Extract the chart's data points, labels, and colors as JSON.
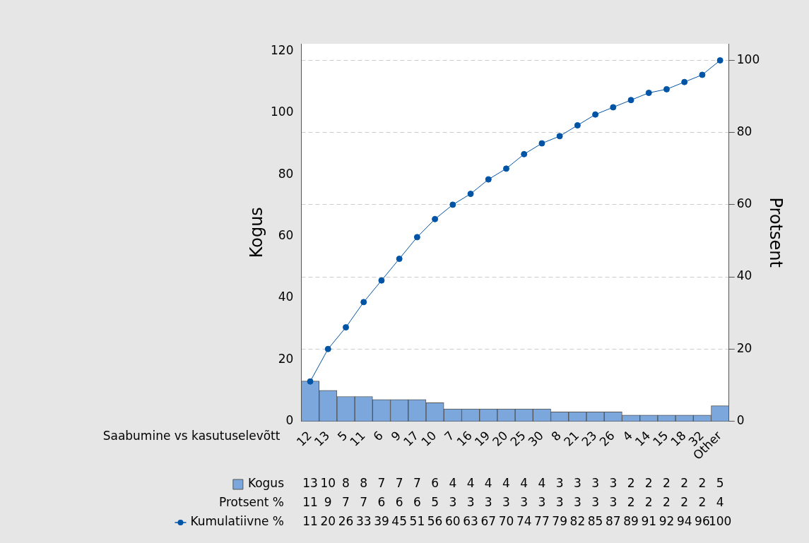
{
  "chart_data": {
    "type": "bar",
    "xlabel": "Saabumine vs kasutuselevõtt",
    "ylabel": "Kogus",
    "y2label": "Protsent",
    "categories": [
      "12",
      "13",
      "5",
      "11",
      "6",
      "9",
      "17",
      "10",
      "7",
      "16",
      "19",
      "20",
      "25",
      "30",
      "8",
      "21",
      "23",
      "26",
      "4",
      "14",
      "15",
      "18",
      "32",
      "Other"
    ],
    "series": [
      {
        "name": "Kogus",
        "color": "#7ba7dc",
        "values": [
          13,
          10,
          8,
          8,
          7,
          7,
          7,
          6,
          4,
          4,
          4,
          4,
          4,
          4,
          3,
          3,
          3,
          3,
          2,
          2,
          2,
          2,
          2,
          5
        ],
        "value_labels": [
          "13",
          "10",
          "8",
          "8",
          "7",
          "7",
          "7",
          "6",
          "4",
          "4",
          "4",
          "4",
          "4",
          "4",
          "3",
          "3",
          "3",
          "3",
          "2",
          "2",
          "2",
          "2",
          "2",
          "5"
        ]
      },
      {
        "type": "line",
        "axis": "y2",
        "name": "Kumulatiivne %",
        "color": "#0054a6",
        "values": [
          11,
          20,
          26,
          33,
          39,
          45,
          51,
          56,
          60,
          63,
          67,
          70,
          74,
          77,
          79,
          82,
          85,
          87,
          89,
          91,
          92,
          94,
          96,
          100
        ],
        "value_labels": [
          "11",
          "20",
          "26",
          "33",
          "39",
          "45",
          "51",
          "56",
          "60",
          "63",
          "67",
          "70",
          "74",
          "77",
          "79",
          "82",
          "85",
          "87",
          "89",
          "91",
          "92",
          "94",
          "96",
          "100"
        ]
      }
    ],
    "annotations": [
      "Protsent %",
      "11",
      "9",
      "7",
      "7",
      "6",
      "6",
      "6",
      "5",
      "3",
      "3",
      "3",
      "3",
      "3",
      "3",
      "3",
      "3",
      "3",
      "3",
      "2",
      "2",
      "2",
      "2",
      "2",
      "4"
    ],
    "ylim": [
      0,
      122.4
    ],
    "yticks": [
      0,
      20,
      40,
      60,
      80,
      100,
      120
    ],
    "y2lim": [
      0,
      104.6
    ],
    "y2ticks": [
      0,
      20,
      40,
      60,
      80,
      100
    ],
    "grid": "y2",
    "marker": "circle",
    "legend": "bottom left"
  }
}
